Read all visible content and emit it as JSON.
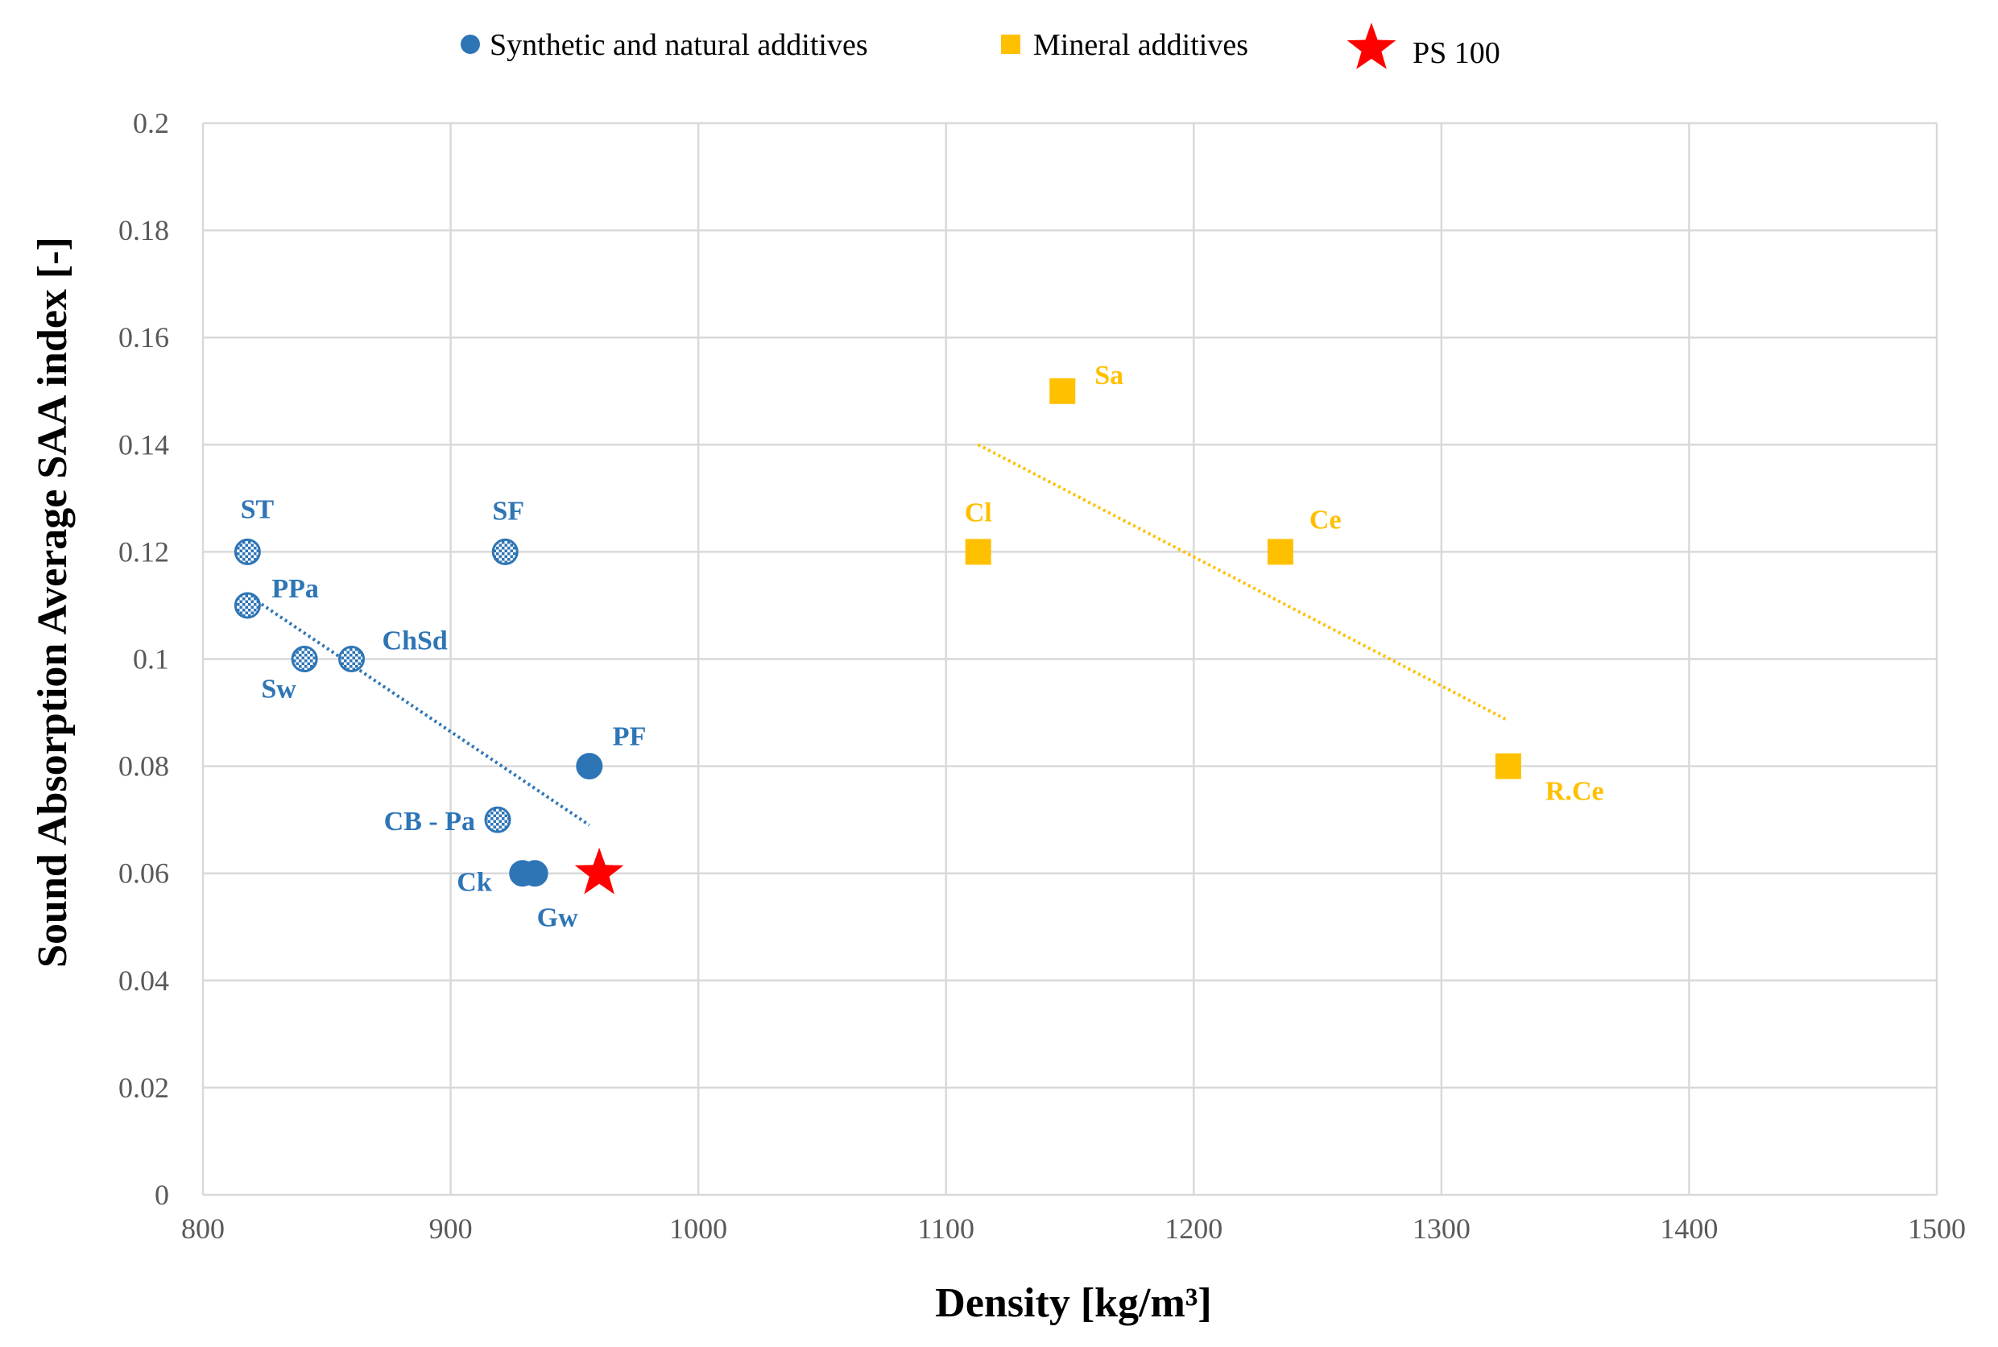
{
  "chart_data": {
    "type": "scatter",
    "xlabel": "Density [kg/m³]",
    "ylabel": "Sound Absorption Average SAA index [-]",
    "xlim": [
      800,
      1500
    ],
    "ylim": [
      0,
      0.2
    ],
    "x_ticks": [
      "800",
      "900",
      "1000",
      "1100",
      "1200",
      "1300",
      "1400",
      "1500"
    ],
    "y_ticks": [
      "0",
      "0.02",
      "0.04",
      "0.06",
      "0.08",
      "0.1",
      "0.12",
      "0.14",
      "0.16",
      "0.18",
      "0.2"
    ],
    "grid": true,
    "legend_position": "top",
    "series": [
      {
        "name": "Synthetic and natural additives",
        "color": "#2E75B6",
        "marker": "circle",
        "points": [
          {
            "label": "ST",
            "x": 818,
            "y": 0.12,
            "pattern": true
          },
          {
            "label": "PPa",
            "x": 818,
            "y": 0.11,
            "pattern": true
          },
          {
            "label": "Sw",
            "x": 841,
            "y": 0.1,
            "pattern": true
          },
          {
            "label": "ChSd",
            "x": 860,
            "y": 0.1,
            "pattern": true
          },
          {
            "label": "SF",
            "x": 922,
            "y": 0.12,
            "pattern": true
          },
          {
            "label": "CB - Pa",
            "x": 919,
            "y": 0.07,
            "pattern": true
          },
          {
            "label": "PF",
            "x": 956,
            "y": 0.08,
            "pattern": false
          },
          {
            "label": "Ck",
            "x": 929,
            "y": 0.06,
            "pattern": false
          },
          {
            "label": "Gw",
            "x": 934,
            "y": 0.06,
            "pattern": false
          }
        ],
        "trendline": {
          "x": [
            818,
            956
          ],
          "y": [
            0.112,
            0.069
          ]
        }
      },
      {
        "name": "Mineral additives",
        "color": "#FFC000",
        "marker": "square",
        "points": [
          {
            "label": "Sa",
            "x": 1147,
            "y": 0.15
          },
          {
            "label": "Cl",
            "x": 1113,
            "y": 0.12
          },
          {
            "label": "Ce",
            "x": 1235,
            "y": 0.12
          },
          {
            "label": "R.Ce",
            "x": 1327,
            "y": 0.08
          }
        ],
        "trendline": {
          "x": [
            1113,
            1327
          ],
          "y": [
            0.14,
            0.0885
          ]
        }
      },
      {
        "name": "PS 100",
        "color": "#FF0000",
        "marker": "star",
        "points": [
          {
            "label": "",
            "x": 960,
            "y": 0.06
          }
        ]
      }
    ]
  }
}
